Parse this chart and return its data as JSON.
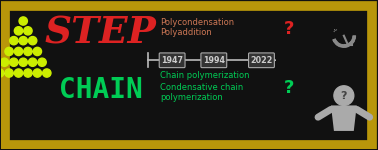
{
  "bg_color": "#111111",
  "border_color": "#b8960a",
  "step_color": "#dd2222",
  "chain_color": "#00cc55",
  "polycond_color": "#cc7755",
  "dot_color": "#ccee00",
  "timeline_color": "#bbbbbb",
  "box_facecolor": "#333333",
  "box_edgecolor": "#aaaaaa",
  "year_labels": [
    "1947",
    "1994",
    "2022"
  ],
  "step_text": "STEP",
  "chain_text": "CHAIN",
  "polycond_text": "Polycondensation",
  "polyadd_text": "Polyaddition",
  "chain_poly_text": "Chain polymerization",
  "cond_chain_text": "Condensative chain",
  "poly_text": "polymerization",
  "question_color_red": "#dd2222",
  "question_color_green": "#00cc55",
  "gray_figure": "#aaaaaa",
  "fig_width": 3.78,
  "fig_height": 1.5,
  "dpi": 100
}
